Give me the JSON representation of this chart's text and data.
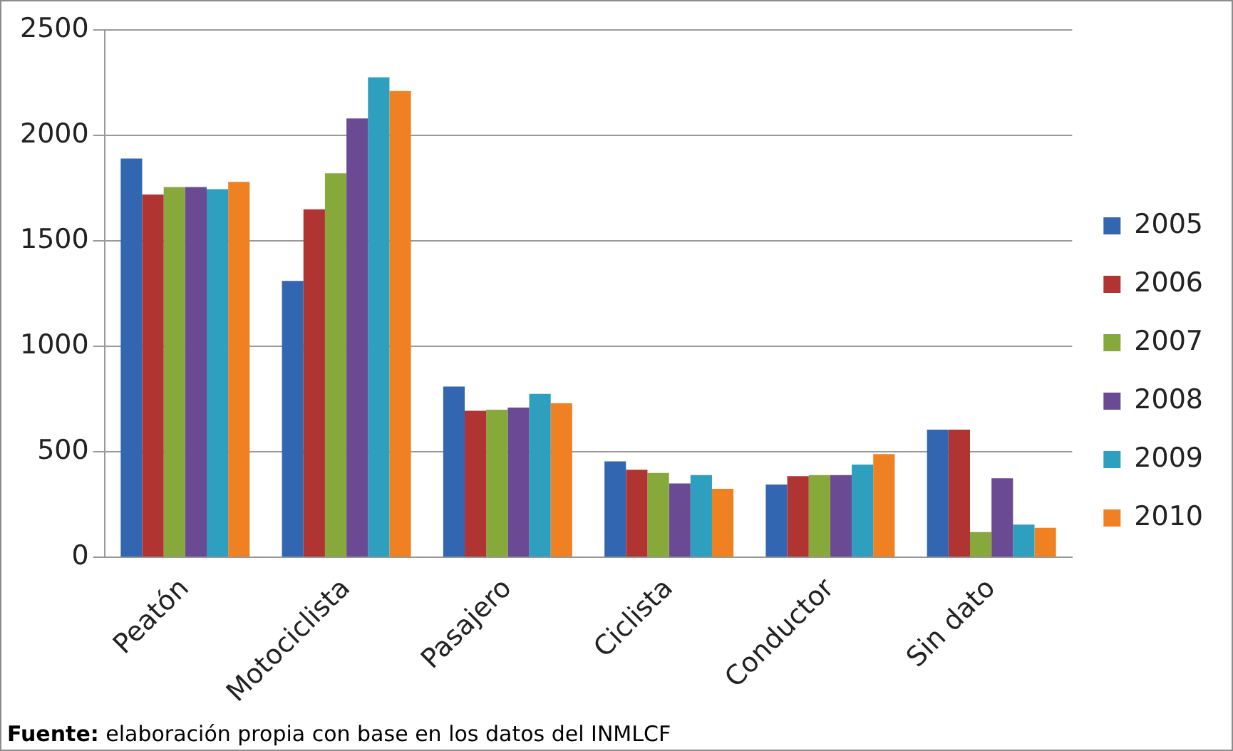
{
  "chart_data": {
    "type": "bar",
    "categories": [
      "Peatón",
      "Motociclista",
      "Pasajero",
      "Ciclista",
      "Conductor",
      "Sin dato"
    ],
    "series": [
      {
        "name": "2005",
        "color": "#3366b0",
        "values": [
          1890,
          1310,
          810,
          455,
          345,
          605
        ]
      },
      {
        "name": "2006",
        "color": "#b03431",
        "values": [
          1720,
          1650,
          695,
          415,
          385,
          605
        ]
      },
      {
        "name": "2007",
        "color": "#87a83a",
        "values": [
          1755,
          1820,
          700,
          400,
          390,
          120
        ]
      },
      {
        "name": "2008",
        "color": "#6a4b93",
        "values": [
          1755,
          2080,
          710,
          350,
          390,
          375
        ]
      },
      {
        "name": "2009",
        "color": "#2e9fbf",
        "values": [
          1745,
          2275,
          775,
          390,
          440,
          155
        ]
      },
      {
        "name": "2010",
        "color": "#ef8122",
        "values": [
          1780,
          2210,
          730,
          325,
          490,
          140
        ]
      }
    ],
    "ylim": [
      0,
      2500
    ],
    "yticks": [
      0,
      500,
      1000,
      1500,
      2000,
      2500
    ],
    "grid": "y",
    "legend": "right",
    "annotations": [
      "Fuente: elaboración propia con base en los datos del INMLCF"
    ]
  }
}
